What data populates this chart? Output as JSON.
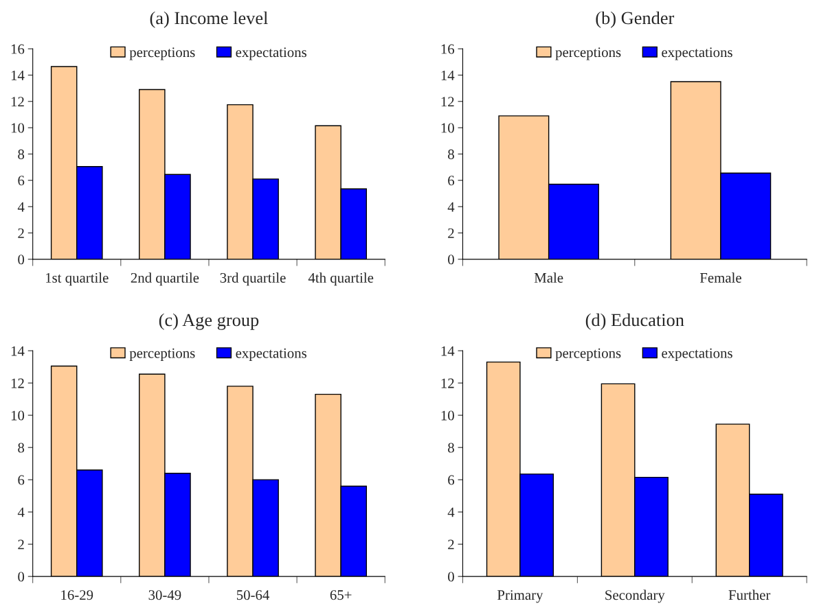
{
  "chart_data": [
    {
      "type": "bar",
      "title": "(a) Income level",
      "categories": [
        "1st quartile",
        "2nd quartile",
        "3rd quartile",
        "4th quartile"
      ],
      "series": [
        {
          "name": "perceptions",
          "color": "#ffcc99",
          "values": [
            14.65,
            12.9,
            11.75,
            10.15
          ]
        },
        {
          "name": "expectations",
          "color": "#0000ff",
          "values": [
            7.05,
            6.45,
            6.1,
            5.35
          ]
        }
      ],
      "ylim": [
        0,
        16
      ],
      "yticks": [
        0,
        2,
        4,
        6,
        8,
        10,
        12,
        14,
        16
      ],
      "grid": false,
      "legend": "top"
    },
    {
      "type": "bar",
      "title": "(b) Gender",
      "categories": [
        "Male",
        "Female"
      ],
      "series": [
        {
          "name": "perceptions",
          "color": "#ffcc99",
          "values": [
            10.9,
            13.5
          ]
        },
        {
          "name": "expectations",
          "color": "#0000ff",
          "values": [
            5.7,
            6.55
          ]
        }
      ],
      "ylim": [
        0,
        16
      ],
      "yticks": [
        0,
        2,
        4,
        6,
        8,
        10,
        12,
        14,
        16
      ],
      "grid": false,
      "legend": "top"
    },
    {
      "type": "bar",
      "title": "(c) Age group",
      "categories": [
        "16-29",
        "30-49",
        "50-64",
        "65+"
      ],
      "series": [
        {
          "name": "perceptions",
          "color": "#ffcc99",
          "values": [
            13.05,
            12.55,
            11.8,
            11.3
          ]
        },
        {
          "name": "expectations",
          "color": "#0000ff",
          "values": [
            6.6,
            6.4,
            6.0,
            5.6
          ]
        }
      ],
      "ylim": [
        0,
        14
      ],
      "yticks": [
        0,
        2,
        4,
        6,
        8,
        10,
        12,
        14
      ],
      "grid": false,
      "legend": "top"
    },
    {
      "type": "bar",
      "title": "(d) Education",
      "categories": [
        "Primary",
        "Secondary",
        "Further"
      ],
      "series": [
        {
          "name": "perceptions",
          "color": "#ffcc99",
          "values": [
            13.3,
            11.95,
            9.45
          ]
        },
        {
          "name": "expectations",
          "color": "#0000ff",
          "values": [
            6.35,
            6.15,
            5.1
          ]
        }
      ],
      "ylim": [
        0,
        14
      ],
      "yticks": [
        0,
        2,
        4,
        6,
        8,
        10,
        12,
        14
      ],
      "grid": false,
      "legend": "top"
    }
  ]
}
